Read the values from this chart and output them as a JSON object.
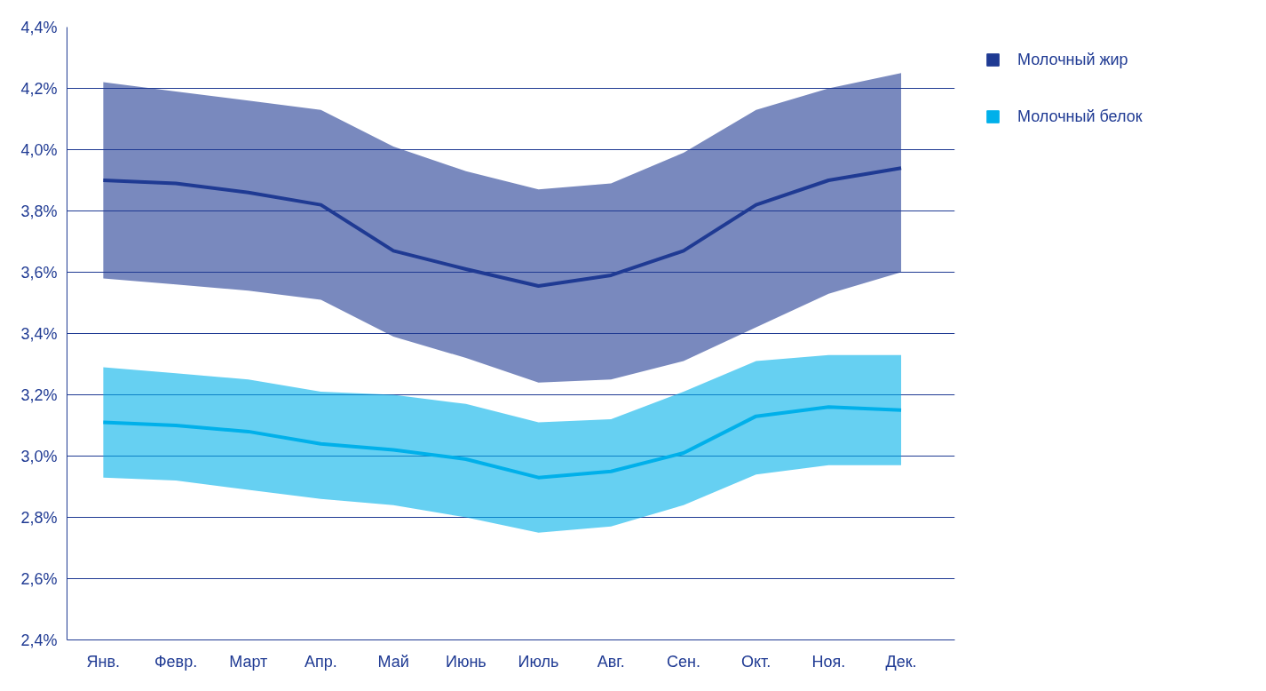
{
  "chart_data": {
    "type": "line",
    "categories": [
      "Янв.",
      "Февр.",
      "Март",
      "Апр.",
      "Май",
      "Июнь",
      "Июль",
      "Авг.",
      "Сен.",
      "Окт.",
      "Ноя.",
      "Дек."
    ],
    "ylim": [
      2.4,
      4.4
    ],
    "yticks": [
      {
        "value": 2.4,
        "label": "2,4%"
      },
      {
        "value": 2.6,
        "label": "2,6%"
      },
      {
        "value": 2.8,
        "label": "2,8%"
      },
      {
        "value": 3.0,
        "label": "3,0%"
      },
      {
        "value": 3.2,
        "label": "3,2%"
      },
      {
        "value": 3.4,
        "label": "3,4%"
      },
      {
        "value": 3.6,
        "label": "3,6%"
      },
      {
        "value": 3.8,
        "label": "3,8%"
      },
      {
        "value": 4.0,
        "label": "4,0%"
      },
      {
        "value": 4.2,
        "label": "4,2%"
      },
      {
        "value": 4.4,
        "label": "4,4%"
      }
    ],
    "grid": "y",
    "legend": "right",
    "line_style": "solid",
    "series": [
      {
        "name": "Молочный жир",
        "color": "#1f3a93",
        "values": [
          3.9,
          3.89,
          3.86,
          3.82,
          3.67,
          3.61,
          3.555,
          3.59,
          3.67,
          3.82,
          3.9,
          3.94
        ],
        "lower": [
          3.58,
          3.56,
          3.54,
          3.51,
          3.39,
          3.32,
          3.24,
          3.25,
          3.31,
          3.42,
          3.53,
          3.6
        ],
        "upper": [
          4.22,
          4.19,
          4.16,
          4.13,
          4.01,
          3.93,
          3.87,
          3.89,
          3.99,
          4.13,
          4.2,
          4.25
        ]
      },
      {
        "name": "Молочный белок",
        "color": "#00b0ea",
        "values": [
          3.11,
          3.1,
          3.08,
          3.04,
          3.02,
          2.99,
          2.93,
          2.95,
          3.01,
          3.13,
          3.16,
          3.15
        ],
        "lower": [
          2.93,
          2.92,
          2.89,
          2.86,
          2.84,
          2.8,
          2.75,
          2.77,
          2.84,
          2.94,
          2.97,
          2.97
        ],
        "upper": [
          3.29,
          3.27,
          3.25,
          3.21,
          3.2,
          3.17,
          3.11,
          3.12,
          3.21,
          3.31,
          3.33,
          3.33
        ]
      }
    ]
  }
}
